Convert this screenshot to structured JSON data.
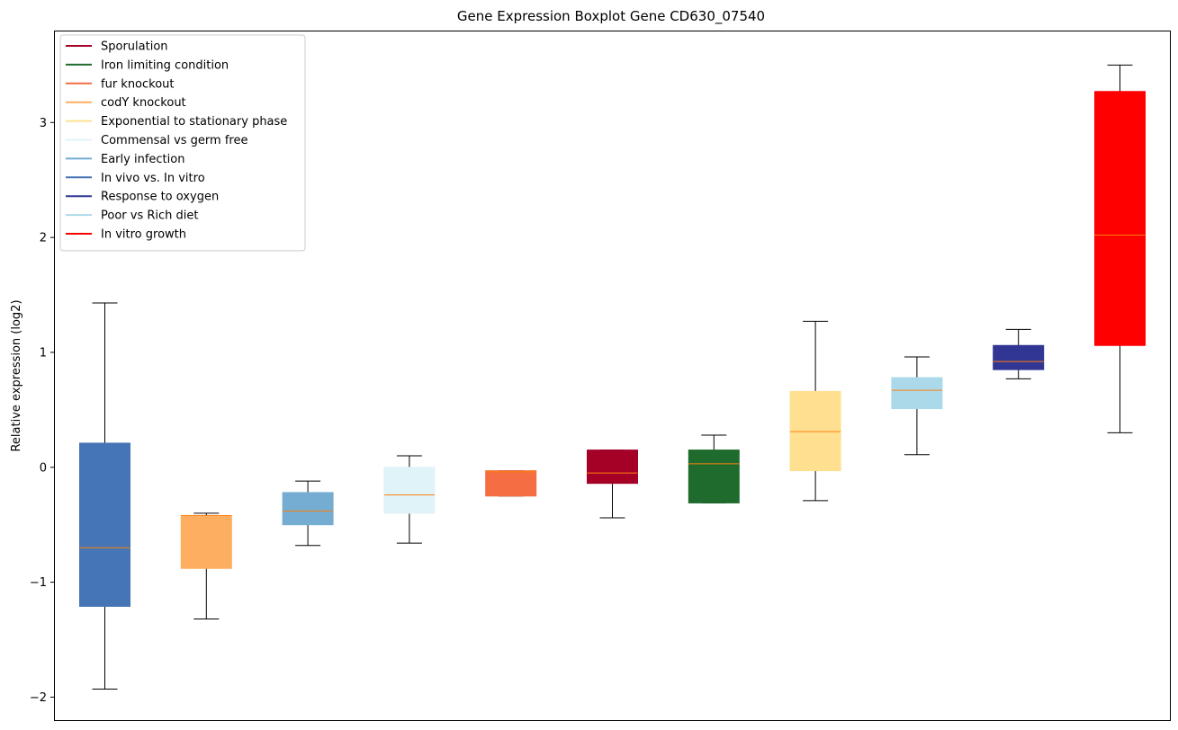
{
  "chart_data": {
    "type": "boxplot",
    "title": "Gene Expression Boxplot Gene CD630_07540",
    "xlabel": "",
    "ylabel": "Relative expression (log2)",
    "ylim": [
      -2.2,
      3.8
    ],
    "yticks": [
      -2,
      -1,
      0,
      1,
      2,
      3
    ],
    "ytick_labels": [
      "−2",
      "−1",
      "0",
      "1",
      "2",
      "3"
    ],
    "grid": false,
    "legend_position": "top-left",
    "legend": [
      {
        "label": "Sporulation",
        "color": "#a50026"
      },
      {
        "label": "Iron limiting condition",
        "color": "#1f6b2e"
      },
      {
        "label": "fur knockout",
        "color": "#f46d43"
      },
      {
        "label": "codY knockout",
        "color": "#fdae61"
      },
      {
        "label": "Exponential to stationary phase",
        "color": "#fee090"
      },
      {
        "label": "Commensal vs germ free",
        "color": "#e0f3f8"
      },
      {
        "label": "Early infection",
        "color": "#74add1"
      },
      {
        "label": "In vivo vs. In vitro",
        "color": "#4575b4"
      },
      {
        "label": "Response to oxygen",
        "color": "#313695"
      },
      {
        "label": "Poor vs Rich diet",
        "color": "#abd9e9"
      },
      {
        "label": "In vitro growth",
        "color": "#ff0000"
      }
    ],
    "boxes": [
      {
        "condition": "In vivo vs. In vitro",
        "color": "#4575b4",
        "whisker_low": -1.93,
        "q1": -1.21,
        "median": -0.7,
        "q3": 0.21,
        "whisker_high": 1.43
      },
      {
        "condition": "codY knockout",
        "color": "#fdae61",
        "whisker_low": -1.32,
        "q1": -0.88,
        "median": -0.42,
        "q3": -0.42,
        "whisker_high": -0.4
      },
      {
        "condition": "Early infection",
        "color": "#74add1",
        "whisker_low": -0.68,
        "q1": -0.5,
        "median": -0.38,
        "q3": -0.22,
        "whisker_high": -0.12
      },
      {
        "condition": "Commensal vs germ free",
        "color": "#e0f3f8",
        "whisker_low": -0.66,
        "q1": -0.4,
        "median": -0.24,
        "q3": 0.0,
        "whisker_high": 0.1
      },
      {
        "condition": "fur knockout",
        "color": "#f46d43",
        "whisker_low": -0.25,
        "q1": -0.25,
        "median": -0.04,
        "q3": -0.03,
        "whisker_high": -0.03
      },
      {
        "condition": "Sporulation",
        "color": "#a50026",
        "whisker_low": -0.44,
        "q1": -0.14,
        "median": -0.05,
        "q3": 0.15,
        "whisker_high": 0.15
      },
      {
        "condition": "Iron limiting condition",
        "color": "#1f6b2e",
        "whisker_low": -0.31,
        "q1": -0.31,
        "median": 0.03,
        "q3": 0.15,
        "whisker_high": 0.28
      },
      {
        "condition": "Exponential to stationary phase",
        "color": "#fee090",
        "whisker_low": -0.29,
        "q1": -0.03,
        "median": 0.31,
        "q3": 0.66,
        "whisker_high": 1.27
      },
      {
        "condition": "Poor vs Rich diet",
        "color": "#abd9e9",
        "whisker_low": 0.11,
        "q1": 0.51,
        "median": 0.67,
        "q3": 0.78,
        "whisker_high": 0.96
      },
      {
        "condition": "Response to oxygen",
        "color": "#313695",
        "whisker_low": 0.77,
        "q1": 0.85,
        "median": 0.92,
        "q3": 1.06,
        "whisker_high": 1.2
      },
      {
        "condition": "In vitro growth",
        "color": "#ff0000",
        "whisker_low": 0.3,
        "q1": 1.06,
        "median": 2.02,
        "q3": 3.27,
        "whisker_high": 3.5
      }
    ],
    "median_color": "#ff7f0e"
  }
}
